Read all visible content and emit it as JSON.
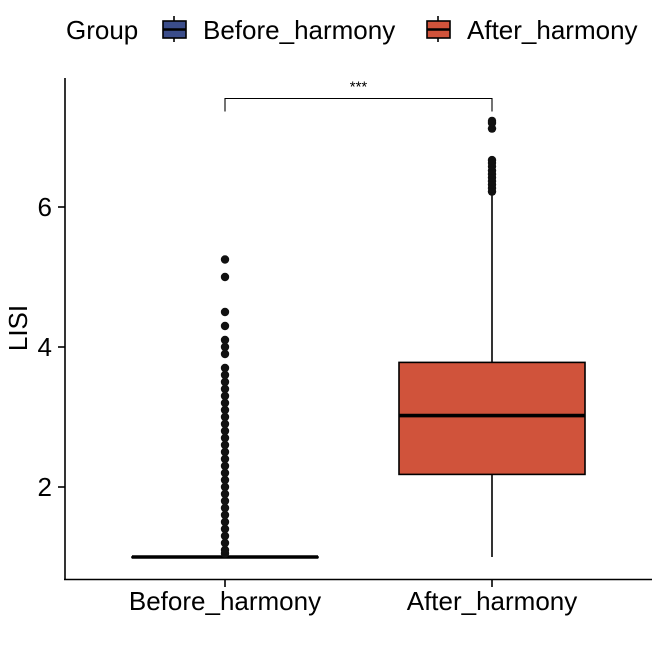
{
  "chart_data": {
    "type": "boxplot",
    "legend": {
      "title": "Group",
      "position": "top"
    },
    "ylabel": "LISI",
    "xlabel": "",
    "ylim": [
      0.7,
      7.9
    ],
    "yticks": [
      2,
      4,
      6
    ],
    "grid": false,
    "categories": [
      "Before_harmony",
      "After_harmony"
    ],
    "series": [
      {
        "name": "Before_harmony",
        "color": "#3b4d8a",
        "stats": {
          "min": 1.0,
          "q1": 1.0,
          "median": 1.0,
          "q3": 1.0,
          "max": 1.0
        },
        "outliers": [
          1.05,
          1.1,
          1.2,
          1.3,
          1.4,
          1.5,
          1.6,
          1.7,
          1.8,
          1.9,
          2.0,
          2.1,
          2.2,
          2.3,
          2.4,
          2.5,
          2.6,
          2.7,
          2.8,
          2.9,
          3.0,
          3.1,
          3.2,
          3.3,
          3.4,
          3.5,
          3.6,
          3.7,
          3.9,
          4.0,
          4.1,
          4.3,
          4.5,
          5.0,
          5.25
        ]
      },
      {
        "name": "After_harmony",
        "color": "#d0533b",
        "stats": {
          "min": 1.0,
          "q1": 2.18,
          "median": 3.02,
          "q3": 3.78,
          "max": 6.18
        },
        "outliers": [
          6.22,
          6.27,
          6.32,
          6.37,
          6.42,
          6.47,
          6.52,
          6.58,
          6.63,
          6.67,
          7.12,
          7.2,
          7.23
        ]
      }
    ],
    "annotations": [
      {
        "type": "significance",
        "from": "Before_harmony",
        "to": "After_harmony",
        "label": "***",
        "y": 7.55
      }
    ]
  }
}
